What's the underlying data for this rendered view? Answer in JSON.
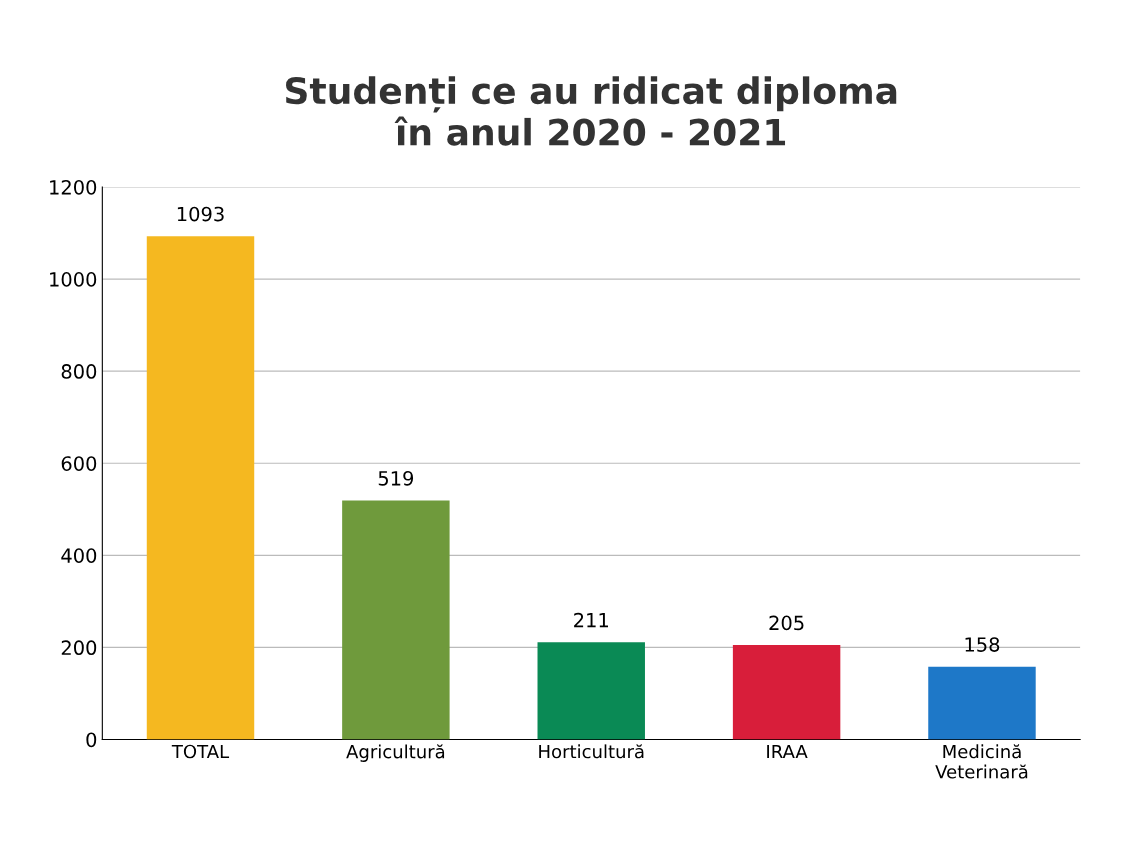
{
  "chart_data": {
    "type": "bar",
    "title": "Studenți ce au ridicat diploma\nîn anul 2020 - 2021",
    "categories": [
      "TOTAL",
      "Agricultură",
      "Horticultură",
      "IRAA",
      "Medicină\nVeterinară"
    ],
    "values": [
      1093,
      519,
      211,
      205,
      158
    ],
    "colors": [
      "#f5b820",
      "#6f9a3c",
      "#0a8a55",
      "#d81e3a",
      "#1e78c8"
    ],
    "ylim": [
      0,
      1200
    ],
    "yticks": [
      0,
      200,
      400,
      600,
      800,
      1000,
      1200
    ],
    "grid": "y",
    "data_labels": true
  }
}
